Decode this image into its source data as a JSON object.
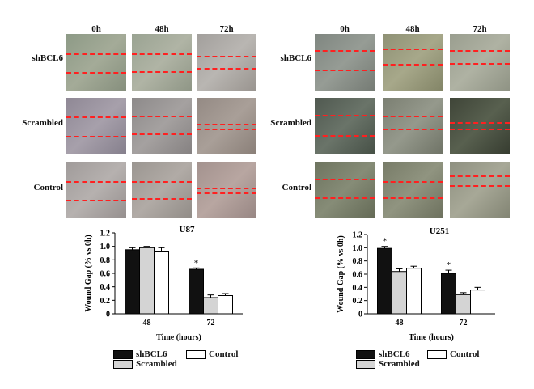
{
  "panels": [
    {
      "columns": [
        "0h",
        "48h",
        "72h"
      ],
      "rows": [
        "shBCL6",
        "Scrambled",
        "Control"
      ]
    },
    {
      "columns": [
        "0h",
        "48h",
        "72h"
      ],
      "rows": [
        "shBCL6",
        "Scrambled",
        "Control"
      ]
    }
  ],
  "colors": {
    "shBCL6": "#111111",
    "Scrambled": "#d4d4d4",
    "Control": "#ffffff",
    "wound_line": "#ff2020"
  },
  "chart_data": [
    {
      "type": "bar",
      "title": "U87",
      "xlabel": "Time (hours)",
      "ylabel": "Wound Gap (% vs 0h)",
      "categories": [
        "48",
        "72"
      ],
      "ylim": [
        0,
        1.2
      ],
      "yticks": [
        "0",
        "0.2",
        "0.4",
        "0.6",
        "0.8",
        "1.0",
        "1.2"
      ],
      "series": [
        {
          "name": "shBCL6",
          "values": [
            0.95,
            0.66
          ],
          "errors": [
            0.03,
            0.02
          ]
        },
        {
          "name": "Scrambled",
          "values": [
            0.98,
            0.24
          ],
          "errors": [
            0.02,
            0.04
          ]
        },
        {
          "name": "Control",
          "values": [
            0.93,
            0.27
          ],
          "errors": [
            0.05,
            0.03
          ]
        }
      ],
      "annotations": [
        {
          "text": "*",
          "category": "72",
          "series": "shBCL6"
        }
      ],
      "legend": "bottom"
    },
    {
      "type": "bar",
      "title": "U251",
      "xlabel": "Time (hours)",
      "ylabel": "Wound Gap (% vs 0h)",
      "categories": [
        "48",
        "72"
      ],
      "ylim": [
        0,
        1.2
      ],
      "yticks": [
        "0",
        "0.2",
        "0.4",
        "0.6",
        "0.8",
        "1.0",
        "1.2"
      ],
      "series": [
        {
          "name": "shBCL6",
          "values": [
            0.99,
            0.61
          ],
          "errors": [
            0.03,
            0.05
          ]
        },
        {
          "name": "Scrambled",
          "values": [
            0.64,
            0.29
          ],
          "errors": [
            0.04,
            0.03
          ]
        },
        {
          "name": "Control",
          "values": [
            0.69,
            0.36
          ],
          "errors": [
            0.03,
            0.04
          ]
        }
      ],
      "annotations": [
        {
          "text": "*",
          "category": "48",
          "series": "shBCL6"
        },
        {
          "text": "*",
          "category": "72",
          "series": "shBCL6"
        }
      ],
      "legend": "bottom"
    }
  ],
  "legend": {
    "items": [
      "shBCL6",
      "Scrambled",
      "Control"
    ]
  }
}
